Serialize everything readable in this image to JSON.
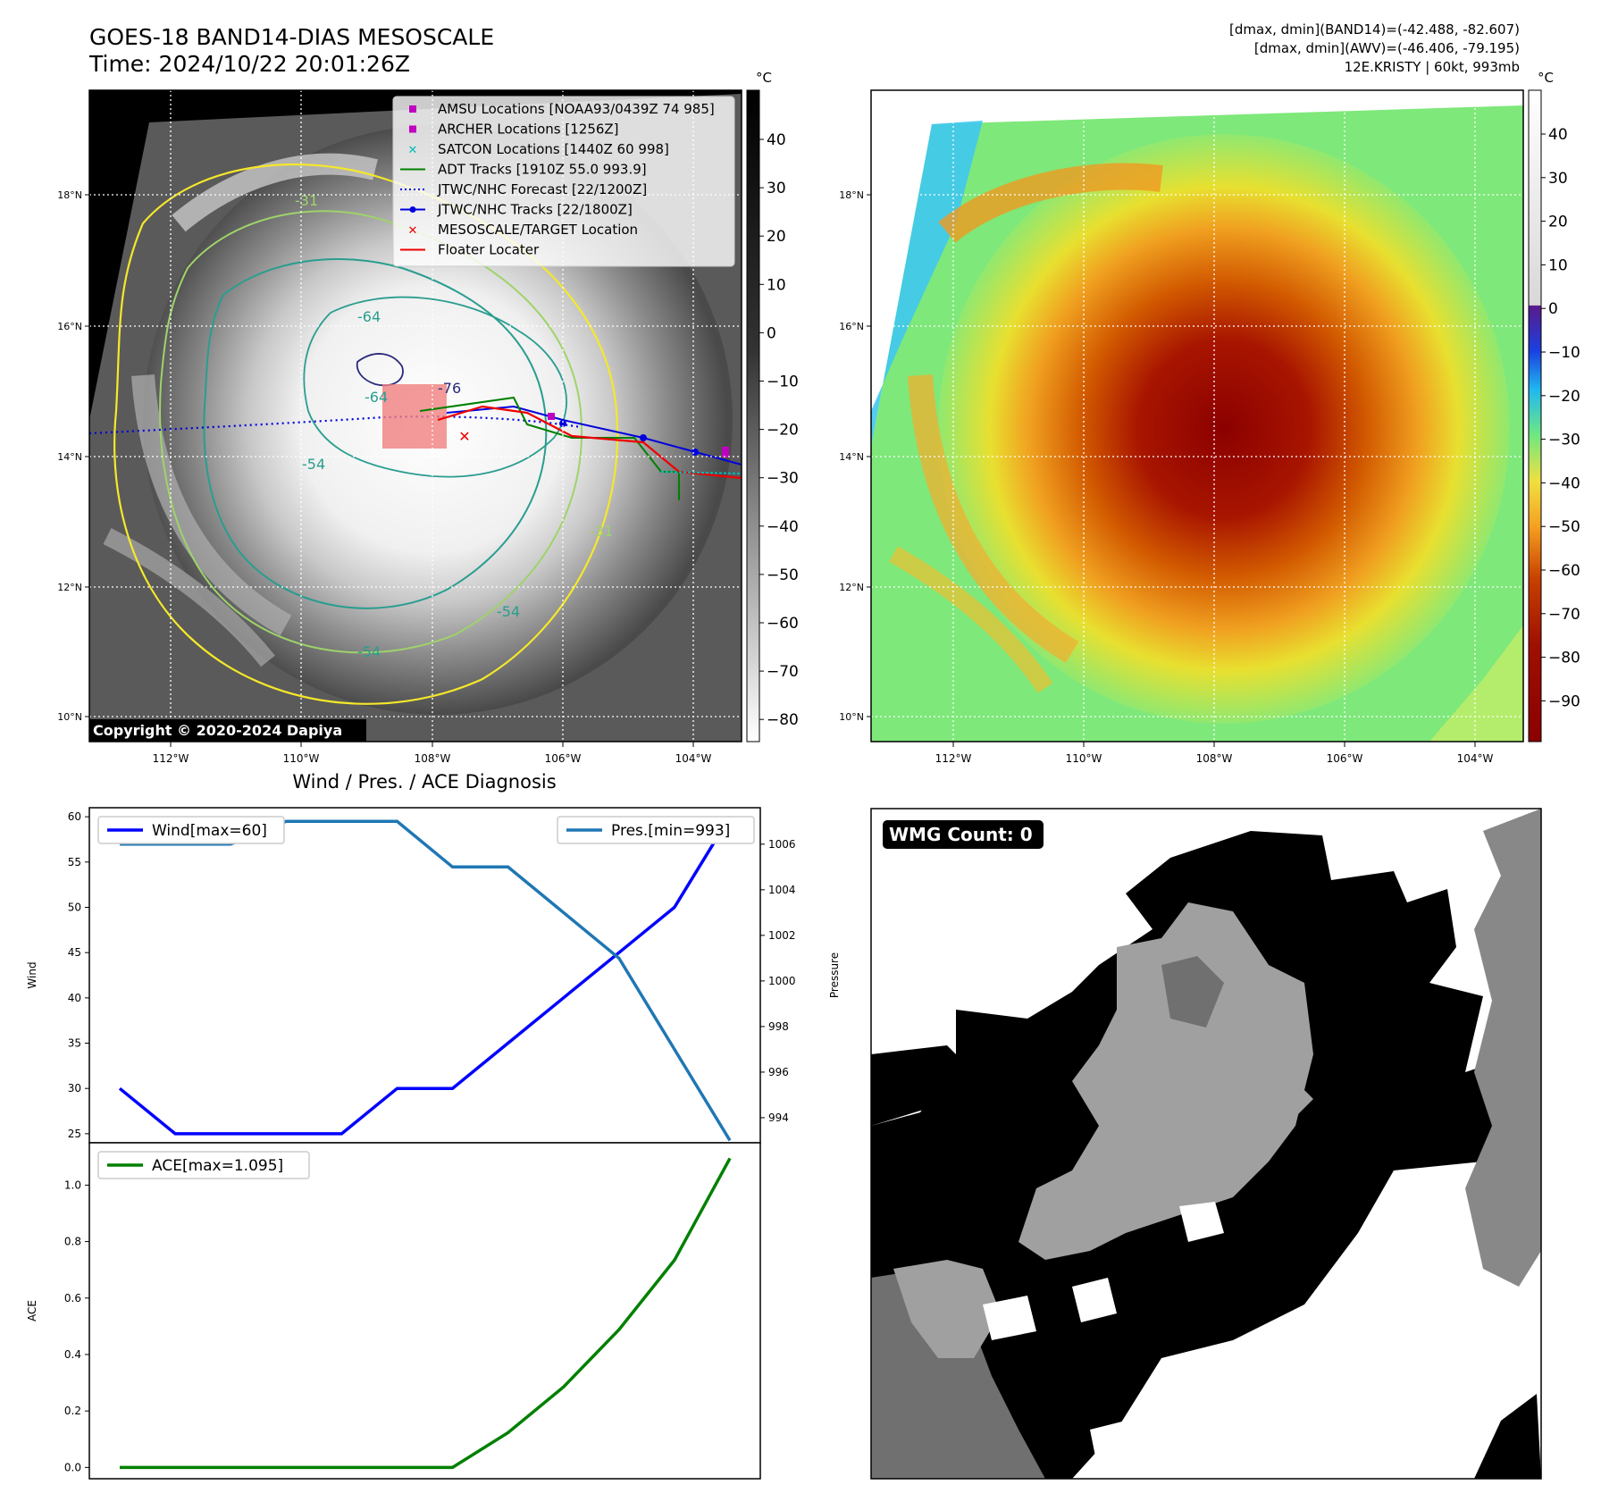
{
  "header": {
    "title": "GOES-18 BAND14-DIAS MESOSCALE",
    "time": "Time: 2024/10/22 20:01:26Z",
    "dmax_band14": "[dmax, dmin](BAND14)=(-42.488, -82.607)",
    "dmax_awv": "[dmax, dmin](AWV)=(-46.406, -79.195)",
    "storm": "12E.KRISTY | 60kt, 993mb"
  },
  "map_panel": {
    "lat_ticks": [
      "18°N",
      "16°N",
      "14°N",
      "12°N",
      "10°N"
    ],
    "lon_ticks": [
      "112°W",
      "110°W",
      "108°W",
      "106°W",
      "104°W"
    ],
    "copyright": "Copyright © 2020-2024 Dapiya",
    "contour_labels": [
      "-76",
      "-64",
      "-64",
      "-54",
      "-54",
      "-54",
      "-31",
      "-31"
    ],
    "legend": [
      {
        "label": "AMSU Locations [NOAA93/0439Z 74 985]",
        "color": "#c000c0",
        "marker": "square"
      },
      {
        "label": "ARCHER Locations [1256Z]",
        "color": "#c000c0",
        "marker": "square"
      },
      {
        "label": "SATCON Locations [1440Z 60 998]",
        "color": "#00bbbb",
        "marker": "x"
      },
      {
        "label": "ADT Tracks [1910Z 55.0 993.9]",
        "color": "#008000",
        "marker": "line"
      },
      {
        "label": "JTWC/NHC Forecast [22/1200Z]",
        "color": "#0000dd",
        "marker": "dotted"
      },
      {
        "label": "JTWC/NHC Tracks [22/1800Z]",
        "color": "#0000dd",
        "marker": "line-dot"
      },
      {
        "label": "MESOSCALE/TARGET Location",
        "color": "#ee0000",
        "marker": "x"
      },
      {
        "label": "Floater Locater",
        "color": "#ee0000",
        "marker": "line"
      }
    ]
  },
  "colorbar_gray": {
    "unit": "°C",
    "ticks": [
      "40",
      "30",
      "20",
      "10",
      "0",
      "−10",
      "−20",
      "−30",
      "−40",
      "−50",
      "−60",
      "−70",
      "−80"
    ]
  },
  "colorbar_color": {
    "unit": "°C",
    "ticks": [
      "40",
      "30",
      "20",
      "10",
      "0",
      "−10",
      "−20",
      "−30",
      "−40",
      "−50",
      "−60",
      "−70",
      "−80",
      "−90"
    ]
  },
  "diagnosis_title": "Wind / Pres. / ACE Diagnosis",
  "wmg": {
    "label": "WMG Count: 0"
  },
  "chart_data": [
    {
      "type": "line",
      "title": "Wind / Pres. / ACE Diagnosis",
      "ylabel": "Wind",
      "y2label": "Pressure",
      "ylim": [
        24,
        61
      ],
      "y2lim": [
        992.9,
        1007.6
      ],
      "yticks": [
        25,
        30,
        35,
        40,
        45,
        50,
        55,
        60
      ],
      "y2ticks": [
        994,
        996,
        998,
        1000,
        1002,
        1004,
        1006
      ],
      "series": [
        {
          "name": "Wind[max=60]",
          "color": "#0000ff",
          "axis": "left",
          "values": [
            30,
            25,
            25,
            25,
            25,
            30,
            30,
            35,
            40,
            45,
            50,
            60
          ]
        },
        {
          "name": "Pres.[min=993]",
          "color": "#1f77b4",
          "axis": "right",
          "values": [
            1006,
            1006,
            1006,
            1007,
            1007,
            1007,
            1005,
            1005,
            1003,
            1001,
            997,
            993
          ]
        }
      ]
    },
    {
      "type": "line",
      "ylabel": "ACE",
      "ylim": [
        -0.04,
        1.15
      ],
      "yticks": [
        0.0,
        0.2,
        0.4,
        0.6,
        0.8,
        1.0
      ],
      "ytick_labels": [
        "0.0",
        "0.2",
        "0.4",
        "0.6",
        "0.8",
        "1.0"
      ],
      "series": [
        {
          "name": "ACE[max=1.095]",
          "color": "#008000",
          "axis": "left",
          "values": [
            0,
            0,
            0,
            0,
            0,
            0,
            0,
            0.123,
            0.285,
            0.488,
            0.734,
            1.095
          ]
        }
      ]
    }
  ]
}
